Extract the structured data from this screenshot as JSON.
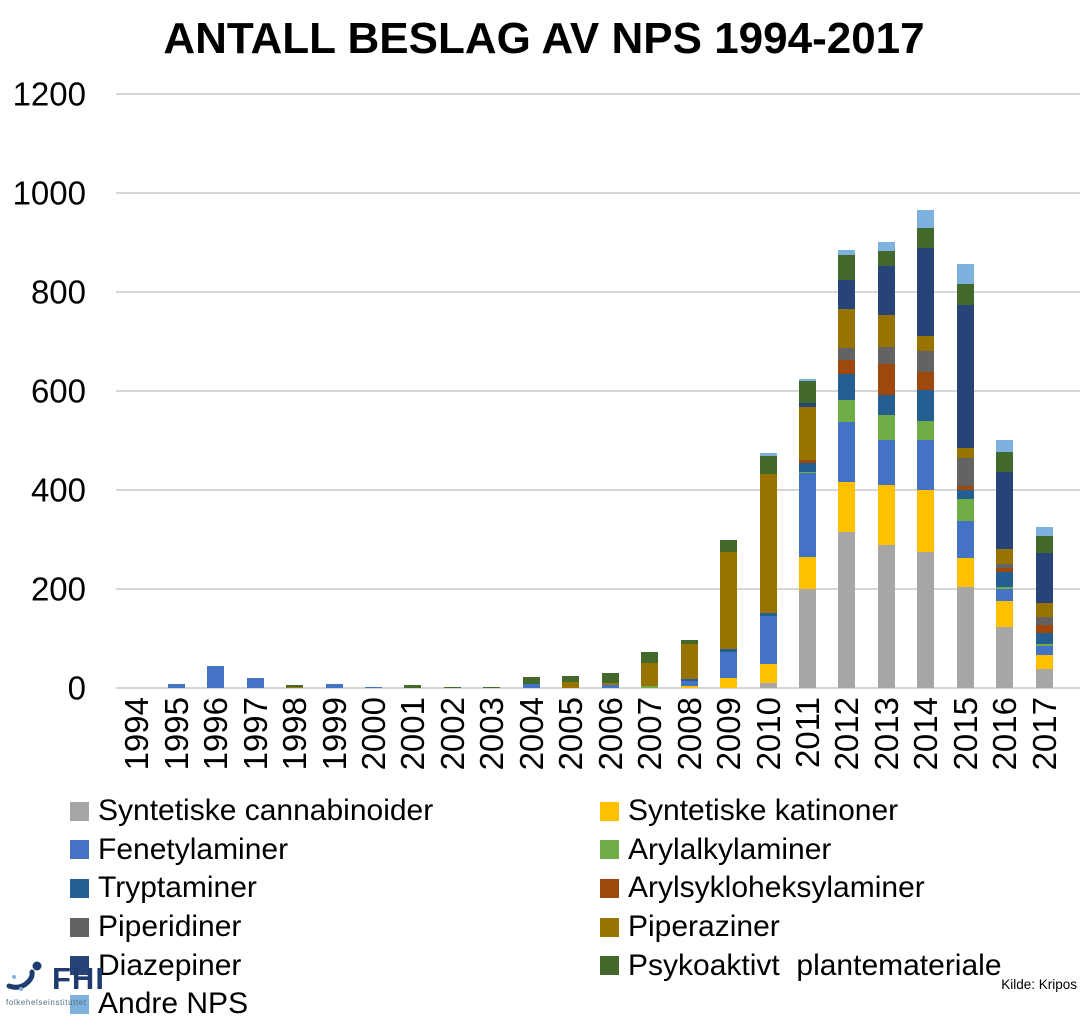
{
  "page": {
    "source": "Kilde: Kripos",
    "logo": {
      "text": "FHI",
      "subtext": "folkehelseinstituttet"
    }
  },
  "chart_data": {
    "type": "bar",
    "stacked": true,
    "title": "ANTALL BESLAG AV NPS 1994-2017",
    "xlabel": "",
    "ylabel": "",
    "ylim": [
      0,
      1200
    ],
    "y_tick_step": 200,
    "y_ticks": [
      0,
      200,
      400,
      600,
      800,
      1000,
      1200
    ],
    "grid": true,
    "legend_position": "bottom",
    "categories": [
      "1994",
      "1995",
      "1996",
      "1997",
      "1998",
      "1999",
      "2000",
      "2001",
      "2002",
      "2003",
      "2004",
      "2005",
      "2006",
      "2007",
      "2008",
      "2009",
      "2010",
      "2011",
      "2012",
      "2013",
      "2014",
      "2015",
      "2016",
      "2017"
    ],
    "series": [
      {
        "name": "Syntetiske cannabinoider",
        "color": "#a6a6a6",
        "values": [
          0,
          0,
          0,
          0,
          0,
          0,
          0,
          0,
          0,
          0,
          0,
          0,
          0,
          0,
          0,
          0,
          11,
          201,
          316,
          288,
          274,
          204,
          123,
          38
        ]
      },
      {
        "name": "Syntetiske katinoner",
        "color": "#ffc000",
        "values": [
          0,
          0,
          0,
          0,
          0,
          0,
          0,
          0,
          0,
          0,
          0,
          0,
          0,
          0,
          5,
          20,
          38,
          63,
          101,
          123,
          127,
          59,
          53,
          29
        ]
      },
      {
        "name": "Fenetylaminer",
        "color": "#4472c4",
        "values": [
          0,
          9,
          45,
          20,
          0,
          9,
          3,
          0,
          0,
          0,
          8,
          0,
          6,
          0,
          10,
          53,
          96,
          170,
          121,
          91,
          101,
          74,
          25,
          17
        ]
      },
      {
        "name": "Arylalkylaminer",
        "color": "#70ad47",
        "values": [
          0,
          0,
          0,
          0,
          0,
          0,
          0,
          0,
          0,
          0,
          0,
          0,
          0,
          5,
          0,
          0,
          0,
          3,
          44,
          49,
          38,
          44,
          3,
          5
        ]
      },
      {
        "name": "Tryptaminer",
        "color": "#255e91",
        "values": [
          0,
          0,
          0,
          0,
          0,
          0,
          0,
          0,
          0,
          0,
          0,
          0,
          0,
          0,
          4,
          5,
          6,
          17,
          52,
          42,
          63,
          20,
          30,
          23
        ]
      },
      {
        "name": "Arylsykloheksylaminer",
        "color": "#9e480e",
        "values": [
          0,
          0,
          0,
          0,
          0,
          0,
          0,
          0,
          0,
          0,
          0,
          0,
          0,
          0,
          0,
          0,
          0,
          7,
          28,
          61,
          35,
          8,
          9,
          16
        ]
      },
      {
        "name": "Piperidiner",
        "color": "#636363",
        "values": [
          0,
          0,
          0,
          0,
          0,
          0,
          0,
          0,
          0,
          0,
          0,
          0,
          0,
          0,
          0,
          0,
          0,
          0,
          24,
          36,
          42,
          56,
          8,
          15
        ]
      },
      {
        "name": "Piperaziner",
        "color": "#997300",
        "values": [
          0,
          0,
          0,
          0,
          3,
          0,
          0,
          0,
          0,
          0,
          0,
          13,
          5,
          46,
          70,
          196,
          281,
          107,
          79,
          64,
          32,
          20,
          30,
          29
        ]
      },
      {
        "name": "Diazepiner",
        "color": "#264478",
        "values": [
          0,
          0,
          0,
          0,
          0,
          0,
          0,
          0,
          0,
          0,
          0,
          0,
          0,
          0,
          0,
          0,
          0,
          8,
          59,
          99,
          178,
          288,
          156,
          101
        ]
      },
      {
        "name": "Psykoaktivt  plantemateriale",
        "color": "#43682b",
        "values": [
          0,
          0,
          0,
          0,
          3,
          0,
          0,
          7,
          3,
          3,
          14,
          12,
          20,
          22,
          8,
          26,
          36,
          45,
          51,
          30,
          40,
          44,
          40,
          34
        ]
      },
      {
        "name": "Andre NPS",
        "color": "#7fb1de",
        "values": [
          0,
          0,
          0,
          0,
          0,
          0,
          0,
          0,
          0,
          0,
          0,
          0,
          0,
          0,
          0,
          0,
          7,
          3,
          10,
          19,
          36,
          39,
          25,
          18
        ]
      }
    ]
  }
}
